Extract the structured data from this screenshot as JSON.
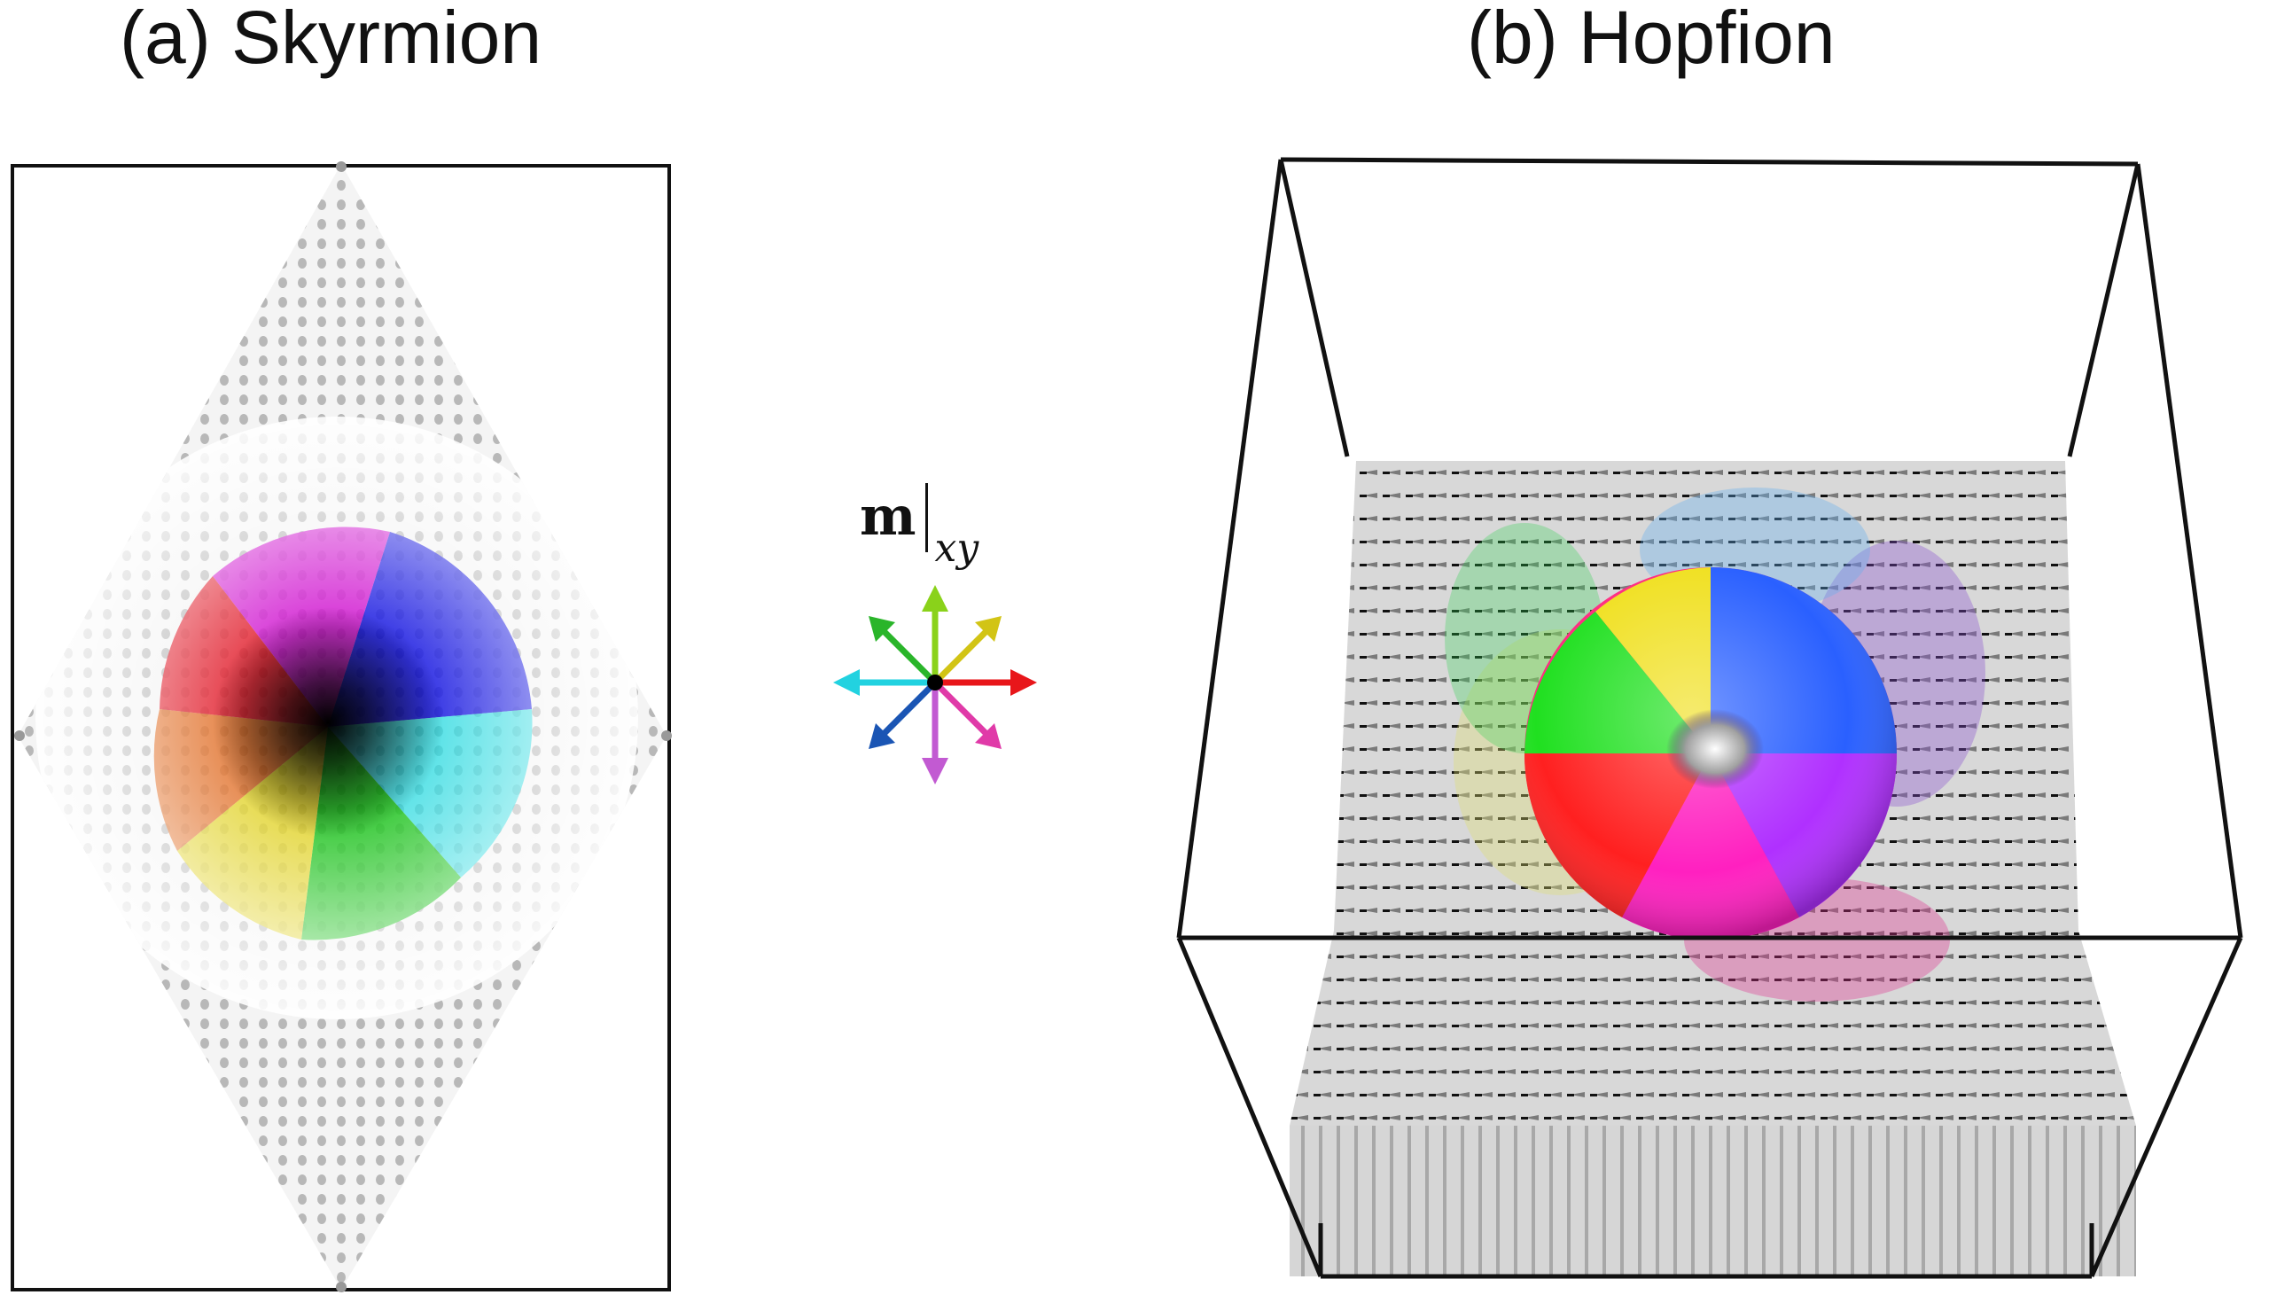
{
  "panel_a": {
    "title": "(a) Skyrmion"
  },
  "panel_b": {
    "title": "(b) Hopfion"
  },
  "legend": {
    "symbol": "m",
    "subscript": "xy",
    "arrows": [
      {
        "direction": "east",
        "color": "#e8161a"
      },
      {
        "direction": "north-east",
        "color": "#d2c415"
      },
      {
        "direction": "north",
        "color": "#8ad21a"
      },
      {
        "direction": "north-west",
        "color": "#2ab52a"
      },
      {
        "direction": "west",
        "color": "#22d2e0"
      },
      {
        "direction": "south-west",
        "color": "#1a55b4"
      },
      {
        "direction": "south",
        "color": "#c25ad2"
      },
      {
        "direction": "south-east",
        "color": "#e03aa8"
      }
    ]
  },
  "colors": {
    "frame": "#111111",
    "background_spin": "#c8c8c8"
  }
}
